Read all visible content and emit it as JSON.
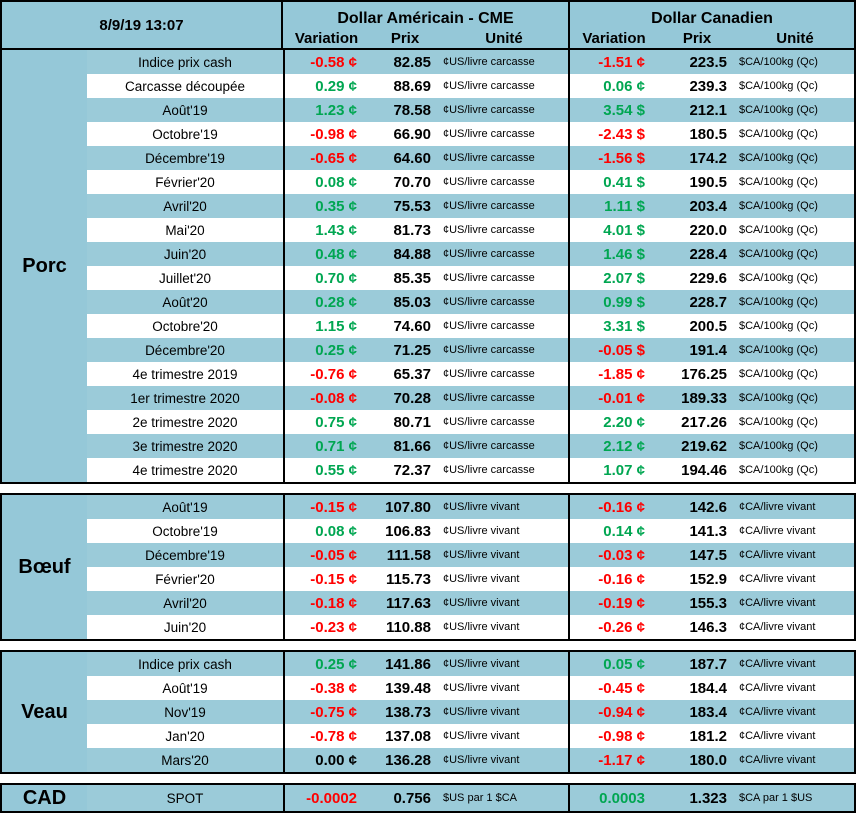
{
  "meta": {
    "timestamp": "8/9/19 13:07"
  },
  "header": {
    "us_title": "Dollar Américain - CME",
    "ca_title": "Dollar Canadien",
    "cols": {
      "variation": "Variation",
      "prix": "Prix",
      "unite": "Unité"
    }
  },
  "colors": {
    "positive": "#00a651",
    "negative": "#ff0000",
    "accent_blue": "#95c8d8"
  },
  "sections": [
    {
      "id": "porc",
      "name": "Porc",
      "rows": [
        {
          "label": "Indice prix cash",
          "us": {
            "var": "-0.58",
            "sym": "¢",
            "dir": "neg",
            "prix": "82.85",
            "unit": "¢US/livre carcasse"
          },
          "ca": {
            "var": "-1.51",
            "sym": "¢",
            "dir": "neg",
            "prix": "223.5",
            "unit": "$CA/100kg (Qc)"
          }
        },
        {
          "label": "Carcasse découpée",
          "us": {
            "var": "0.29",
            "sym": "¢",
            "dir": "pos",
            "prix": "88.69",
            "unit": "¢US/livre carcasse"
          },
          "ca": {
            "var": "0.06",
            "sym": "¢",
            "dir": "pos",
            "prix": "239.3",
            "unit": "$CA/100kg (Qc)"
          }
        },
        {
          "label": "Août'19",
          "us": {
            "var": "1.23",
            "sym": "¢",
            "dir": "pos",
            "prix": "78.58",
            "unit": "¢US/livre carcasse"
          },
          "ca": {
            "var": "3.54",
            "sym": "$",
            "dir": "pos",
            "prix": "212.1",
            "unit": "$CA/100kg (Qc)"
          }
        },
        {
          "label": "Octobre'19",
          "us": {
            "var": "-0.98",
            "sym": "¢",
            "dir": "neg",
            "prix": "66.90",
            "unit": "¢US/livre carcasse"
          },
          "ca": {
            "var": "-2.43",
            "sym": "$",
            "dir": "neg",
            "prix": "180.5",
            "unit": "$CA/100kg (Qc)"
          }
        },
        {
          "label": "Décembre'19",
          "us": {
            "var": "-0.65",
            "sym": "¢",
            "dir": "neg",
            "prix": "64.60",
            "unit": "¢US/livre carcasse"
          },
          "ca": {
            "var": "-1.56",
            "sym": "$",
            "dir": "neg",
            "prix": "174.2",
            "unit": "$CA/100kg (Qc)"
          }
        },
        {
          "label": "Février'20",
          "us": {
            "var": "0.08",
            "sym": "¢",
            "dir": "pos",
            "prix": "70.70",
            "unit": "¢US/livre carcasse"
          },
          "ca": {
            "var": "0.41",
            "sym": "$",
            "dir": "pos",
            "prix": "190.5",
            "unit": "$CA/100kg (Qc)"
          }
        },
        {
          "label": "Avril'20",
          "us": {
            "var": "0.35",
            "sym": "¢",
            "dir": "pos",
            "prix": "75.53",
            "unit": "¢US/livre carcasse"
          },
          "ca": {
            "var": "1.11",
            "sym": "$",
            "dir": "pos",
            "prix": "203.4",
            "unit": "$CA/100kg (Qc)"
          }
        },
        {
          "label": "Mai'20",
          "us": {
            "var": "1.43",
            "sym": "¢",
            "dir": "pos",
            "prix": "81.73",
            "unit": "¢US/livre carcasse"
          },
          "ca": {
            "var": "4.01",
            "sym": "$",
            "dir": "pos",
            "prix": "220.0",
            "unit": "$CA/100kg (Qc)"
          }
        },
        {
          "label": "Juin'20",
          "us": {
            "var": "0.48",
            "sym": "¢",
            "dir": "pos",
            "prix": "84.88",
            "unit": "¢US/livre carcasse"
          },
          "ca": {
            "var": "1.46",
            "sym": "$",
            "dir": "pos",
            "prix": "228.4",
            "unit": "$CA/100kg (Qc)"
          }
        },
        {
          "label": "Juillet'20",
          "us": {
            "var": "0.70",
            "sym": "¢",
            "dir": "pos",
            "prix": "85.35",
            "unit": "¢US/livre carcasse"
          },
          "ca": {
            "var": "2.07",
            "sym": "$",
            "dir": "pos",
            "prix": "229.6",
            "unit": "$CA/100kg (Qc)"
          }
        },
        {
          "label": "Août'20",
          "us": {
            "var": "0.28",
            "sym": "¢",
            "dir": "pos",
            "prix": "85.03",
            "unit": "¢US/livre carcasse"
          },
          "ca": {
            "var": "0.99",
            "sym": "$",
            "dir": "pos",
            "prix": "228.7",
            "unit": "$CA/100kg (Qc)"
          }
        },
        {
          "label": "Octobre'20",
          "us": {
            "var": "1.15",
            "sym": "¢",
            "dir": "pos",
            "prix": "74.60",
            "unit": "¢US/livre carcasse"
          },
          "ca": {
            "var": "3.31",
            "sym": "$",
            "dir": "pos",
            "prix": "200.5",
            "unit": "$CA/100kg (Qc)"
          }
        },
        {
          "label": "Décembre'20",
          "us": {
            "var": "0.25",
            "sym": "¢",
            "dir": "pos",
            "prix": "71.25",
            "unit": "¢US/livre carcasse"
          },
          "ca": {
            "var": "-0.05",
            "sym": "$",
            "dir": "neg",
            "prix": "191.4",
            "unit": "$CA/100kg (Qc)"
          }
        },
        {
          "label": "4e trimestre 2019",
          "us": {
            "var": "-0.76",
            "sym": "¢",
            "dir": "neg",
            "prix": "65.37",
            "unit": "¢US/livre carcasse"
          },
          "ca": {
            "var": "-1.85",
            "sym": "¢",
            "dir": "neg",
            "prix": "176.25",
            "unit": "$CA/100kg (Qc)"
          }
        },
        {
          "label": "1er trimestre 2020",
          "us": {
            "var": "-0.08",
            "sym": "¢",
            "dir": "neg",
            "prix": "70.28",
            "unit": "¢US/livre carcasse"
          },
          "ca": {
            "var": "-0.01",
            "sym": "¢",
            "dir": "neg",
            "prix": "189.33",
            "unit": "$CA/100kg (Qc)"
          }
        },
        {
          "label": "2e trimestre 2020",
          "us": {
            "var": "0.75",
            "sym": "¢",
            "dir": "pos",
            "prix": "80.71",
            "unit": "¢US/livre carcasse"
          },
          "ca": {
            "var": "2.20",
            "sym": "¢",
            "dir": "pos",
            "prix": "217.26",
            "unit": "$CA/100kg (Qc)"
          }
        },
        {
          "label": "3e trimestre 2020",
          "us": {
            "var": "0.71",
            "sym": "¢",
            "dir": "pos",
            "prix": "81.66",
            "unit": "¢US/livre carcasse"
          },
          "ca": {
            "var": "2.12",
            "sym": "¢",
            "dir": "pos",
            "prix": "219.62",
            "unit": "$CA/100kg (Qc)"
          }
        },
        {
          "label": "4e trimestre 2020",
          "us": {
            "var": "0.55",
            "sym": "¢",
            "dir": "pos",
            "prix": "72.37",
            "unit": "¢US/livre carcasse"
          },
          "ca": {
            "var": "1.07",
            "sym": "¢",
            "dir": "pos",
            "prix": "194.46",
            "unit": "$CA/100kg (Qc)"
          }
        }
      ]
    },
    {
      "id": "boeuf",
      "name": "Bœuf",
      "rows": [
        {
          "label": "Août'19",
          "us": {
            "var": "-0.15",
            "sym": "¢",
            "dir": "neg",
            "prix": "107.80",
            "unit": "¢US/livre vivant"
          },
          "ca": {
            "var": "-0.16",
            "sym": "¢",
            "dir": "neg",
            "prix": "142.6",
            "unit": "¢CA/livre vivant"
          }
        },
        {
          "label": "Octobre'19",
          "us": {
            "var": "0.08",
            "sym": "¢",
            "dir": "pos",
            "prix": "106.83",
            "unit": "¢US/livre vivant"
          },
          "ca": {
            "var": "0.14",
            "sym": "¢",
            "dir": "pos",
            "prix": "141.3",
            "unit": "¢CA/livre vivant"
          }
        },
        {
          "label": "Décembre'19",
          "us": {
            "var": "-0.05",
            "sym": "¢",
            "dir": "neg",
            "prix": "111.58",
            "unit": "¢US/livre vivant"
          },
          "ca": {
            "var": "-0.03",
            "sym": "¢",
            "dir": "neg",
            "prix": "147.5",
            "unit": "¢CA/livre vivant"
          }
        },
        {
          "label": "Février'20",
          "us": {
            "var": "-0.15",
            "sym": "¢",
            "dir": "neg",
            "prix": "115.73",
            "unit": "¢US/livre vivant"
          },
          "ca": {
            "var": "-0.16",
            "sym": "¢",
            "dir": "neg",
            "prix": "152.9",
            "unit": "¢CA/livre vivant"
          }
        },
        {
          "label": "Avril'20",
          "us": {
            "var": "-0.18",
            "sym": "¢",
            "dir": "neg",
            "prix": "117.63",
            "unit": "¢US/livre vivant"
          },
          "ca": {
            "var": "-0.19",
            "sym": "¢",
            "dir": "neg",
            "prix": "155.3",
            "unit": "¢CA/livre vivant"
          }
        },
        {
          "label": "Juin'20",
          "us": {
            "var": "-0.23",
            "sym": "¢",
            "dir": "neg",
            "prix": "110.88",
            "unit": "¢US/livre vivant"
          },
          "ca": {
            "var": "-0.26",
            "sym": "¢",
            "dir": "neg",
            "prix": "146.3",
            "unit": "¢CA/livre vivant"
          }
        }
      ]
    },
    {
      "id": "veau",
      "name": "Veau",
      "rows": [
        {
          "label": "Indice prix cash",
          "us": {
            "var": "0.25",
            "sym": "¢",
            "dir": "pos",
            "prix": "141.86",
            "unit": "¢US/livre vivant"
          },
          "ca": {
            "var": "0.05",
            "sym": "¢",
            "dir": "pos",
            "prix": "187.7",
            "unit": "¢CA/livre vivant"
          }
        },
        {
          "label": "Août'19",
          "us": {
            "var": "-0.38",
            "sym": "¢",
            "dir": "neg",
            "prix": "139.48",
            "unit": "¢US/livre vivant"
          },
          "ca": {
            "var": "-0.45",
            "sym": "¢",
            "dir": "neg",
            "prix": "184.4",
            "unit": "¢CA/livre vivant"
          }
        },
        {
          "label": "Nov'19",
          "us": {
            "var": "-0.75",
            "sym": "¢",
            "dir": "neg",
            "prix": "138.73",
            "unit": "¢US/livre vivant"
          },
          "ca": {
            "var": "-0.94",
            "sym": "¢",
            "dir": "neg",
            "prix": "183.4",
            "unit": "¢CA/livre vivant"
          }
        },
        {
          "label": "Jan'20",
          "us": {
            "var": "-0.78",
            "sym": "¢",
            "dir": "neg",
            "prix": "137.08",
            "unit": "¢US/livre vivant"
          },
          "ca": {
            "var": "-0.98",
            "sym": "¢",
            "dir": "neg",
            "prix": "181.2",
            "unit": "¢CA/livre vivant"
          }
        },
        {
          "label": "Mars'20",
          "us": {
            "var": "0.00",
            "sym": "¢",
            "dir": "zero",
            "prix": "136.28",
            "unit": "¢US/livre vivant"
          },
          "ca": {
            "var": "-1.17",
            "sym": "¢",
            "dir": "neg",
            "prix": "180.0",
            "unit": "¢CA/livre vivant"
          }
        }
      ]
    },
    {
      "id": "cad",
      "name": "CAD",
      "rows": [
        {
          "label": "SPOT",
          "us": {
            "var": "-0.0002",
            "sym": "",
            "dir": "neg",
            "prix": "0.756",
            "unit": "$US par 1 $CA"
          },
          "ca": {
            "var": "0.0003",
            "sym": "",
            "dir": "pos",
            "prix": "1.323",
            "unit": "$CA par 1 $US"
          }
        }
      ]
    }
  ]
}
